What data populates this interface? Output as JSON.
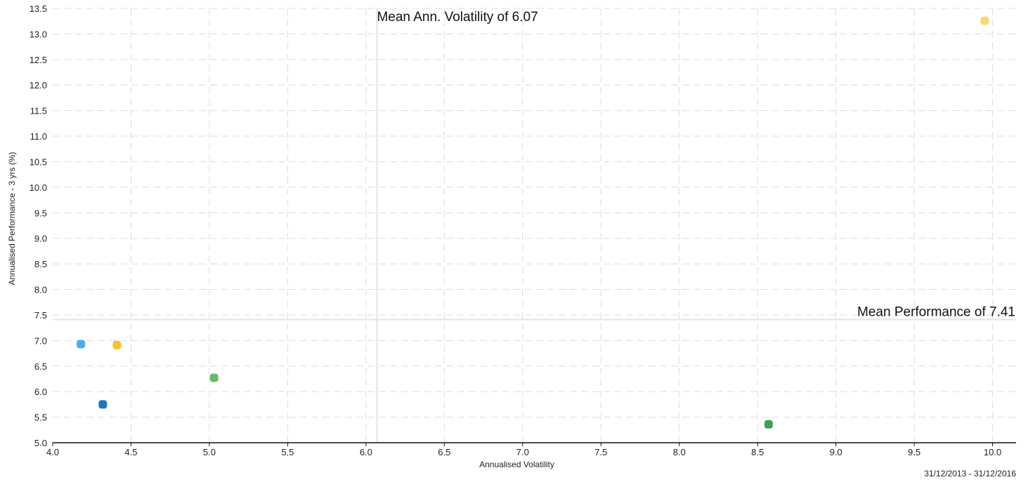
{
  "chart_data": {
    "type": "scatter",
    "xlabel": "Annualised Volatility",
    "ylabel": "Annualised Performance - 3 yrs (%)",
    "xlim": [
      4.0,
      10.15
    ],
    "ylim": [
      5.0,
      13.5
    ],
    "xticks": [
      4.0,
      4.5,
      5.0,
      5.5,
      6.0,
      6.5,
      7.0,
      7.5,
      8.0,
      8.5,
      9.0,
      9.5,
      10.0
    ],
    "yticks": [
      5.0,
      5.5,
      6.0,
      6.5,
      7.0,
      7.5,
      8.0,
      8.5,
      9.0,
      9.5,
      10.0,
      10.5,
      11.0,
      11.5,
      12.0,
      12.5,
      13.0,
      13.5
    ],
    "tick_decimals": 1,
    "grid": true,
    "mean_x": {
      "value": 6.07,
      "label": "Mean Ann. Volatility of  6.07"
    },
    "mean_y": {
      "value": 7.41,
      "label": "Mean Performance of  7.41"
    },
    "date_range": "31/12/2013 - 31/12/2016",
    "points": [
      {
        "x": 4.18,
        "y": 6.93,
        "color": "#4baee8"
      },
      {
        "x": 4.41,
        "y": 6.91,
        "color": "#f5c42c"
      },
      {
        "x": 4.32,
        "y": 5.75,
        "color": "#1c75bc"
      },
      {
        "x": 5.03,
        "y": 6.27,
        "color": "#66bb6a"
      },
      {
        "x": 8.57,
        "y": 5.36,
        "color": "#3e9e57"
      },
      {
        "x": 9.95,
        "y": 13.26,
        "color": "#f7d96b"
      }
    ]
  }
}
